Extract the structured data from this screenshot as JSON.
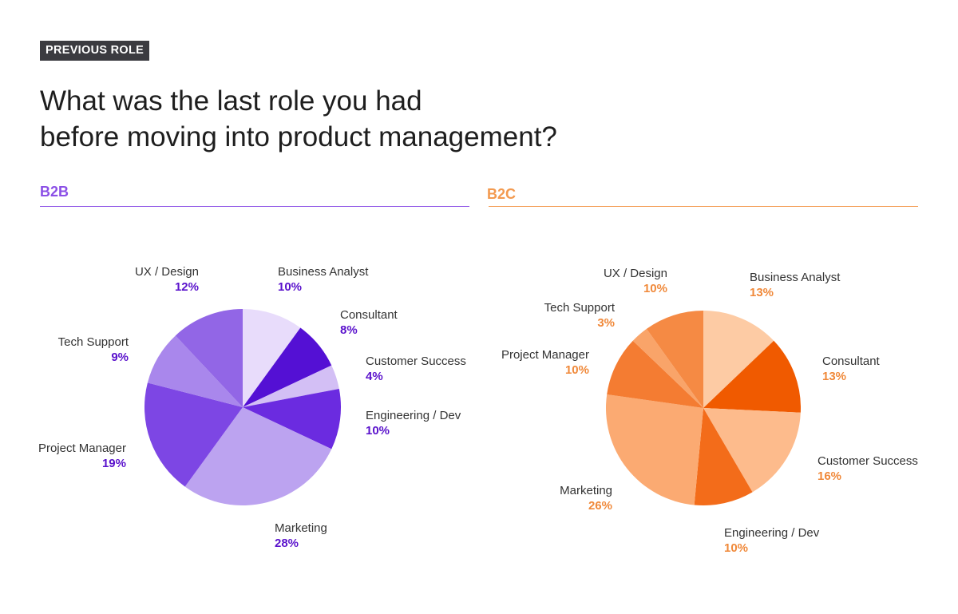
{
  "header": {
    "badge": "PREVIOUS ROLE",
    "title_line1": "What was the last role you had",
    "title_line2": "before moving into product management?"
  },
  "colors": {
    "b2b_accent": "#8b4fe6",
    "b2b_pct_text": "#5a12cc",
    "b2c_accent": "#f39a4f",
    "b2c_pct_text": "#f0893a"
  },
  "chart_data": [
    {
      "type": "pie",
      "title": "B2B",
      "unit": "%",
      "slices": [
        {
          "label": "Business Analyst",
          "value": 10,
          "color": "#e8dcfb"
        },
        {
          "label": "Consultant",
          "value": 8,
          "color": "#5410d4"
        },
        {
          "label": "Customer Success",
          "value": 4,
          "color": "#d3bff5"
        },
        {
          "label": "Engineering / Dev",
          "value": 10,
          "color": "#6b2be0"
        },
        {
          "label": "Marketing",
          "value": 28,
          "color": "#bca3f0"
        },
        {
          "label": "Project Manager",
          "value": 19,
          "color": "#7d46e4"
        },
        {
          "label": "Tech Support",
          "value": 9,
          "color": "#a987ec"
        },
        {
          "label": "UX / Design",
          "value": 12,
          "color": "#9266e6"
        }
      ]
    },
    {
      "type": "pie",
      "title": "B2C",
      "unit": "%",
      "slices": [
        {
          "label": "Business Analyst",
          "value": 13,
          "color": "#fdcba4"
        },
        {
          "label": "Consultant",
          "value": 13,
          "color": "#f05a00"
        },
        {
          "label": "Customer Success",
          "value": 16,
          "color": "#fdbb8c"
        },
        {
          "label": "Engineering / Dev",
          "value": 10,
          "color": "#f36c1a"
        },
        {
          "label": "Marketing",
          "value": 26,
          "color": "#fbaa72"
        },
        {
          "label": "Project Manager",
          "value": 10,
          "color": "#f47c32"
        },
        {
          "label": "Tech Support",
          "value": 3,
          "color": "#f9a469"
        },
        {
          "label": "UX / Design",
          "value": 10,
          "color": "#f58a44"
        }
      ]
    }
  ]
}
